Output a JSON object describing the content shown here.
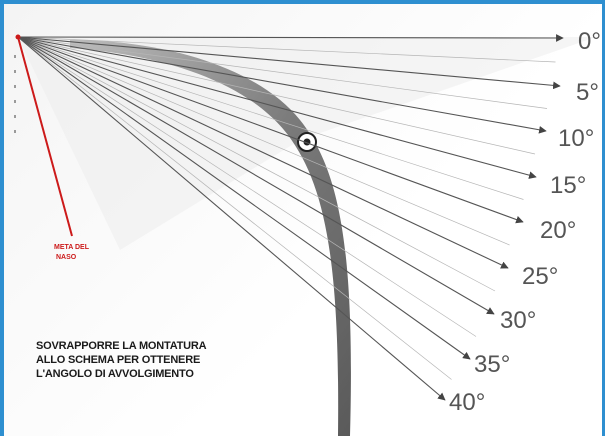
{
  "angles": [
    "0°",
    "5°",
    "10°",
    "15°",
    "20°",
    "25°",
    "30°",
    "35°",
    "40°"
  ],
  "red_label": [
    "META DEL",
    "NASO"
  ],
  "instruction": [
    "SOVRAPPORRE LA MONTATURA",
    "ALLO SCHEMA PER OTTENERE",
    "L'ANGOLO DI AVVOLGIMENTO"
  ],
  "colors": {
    "border": "#2e8fd0",
    "red_line": "#cc1a1a",
    "lens_band": "#6f6f6f"
  }
}
